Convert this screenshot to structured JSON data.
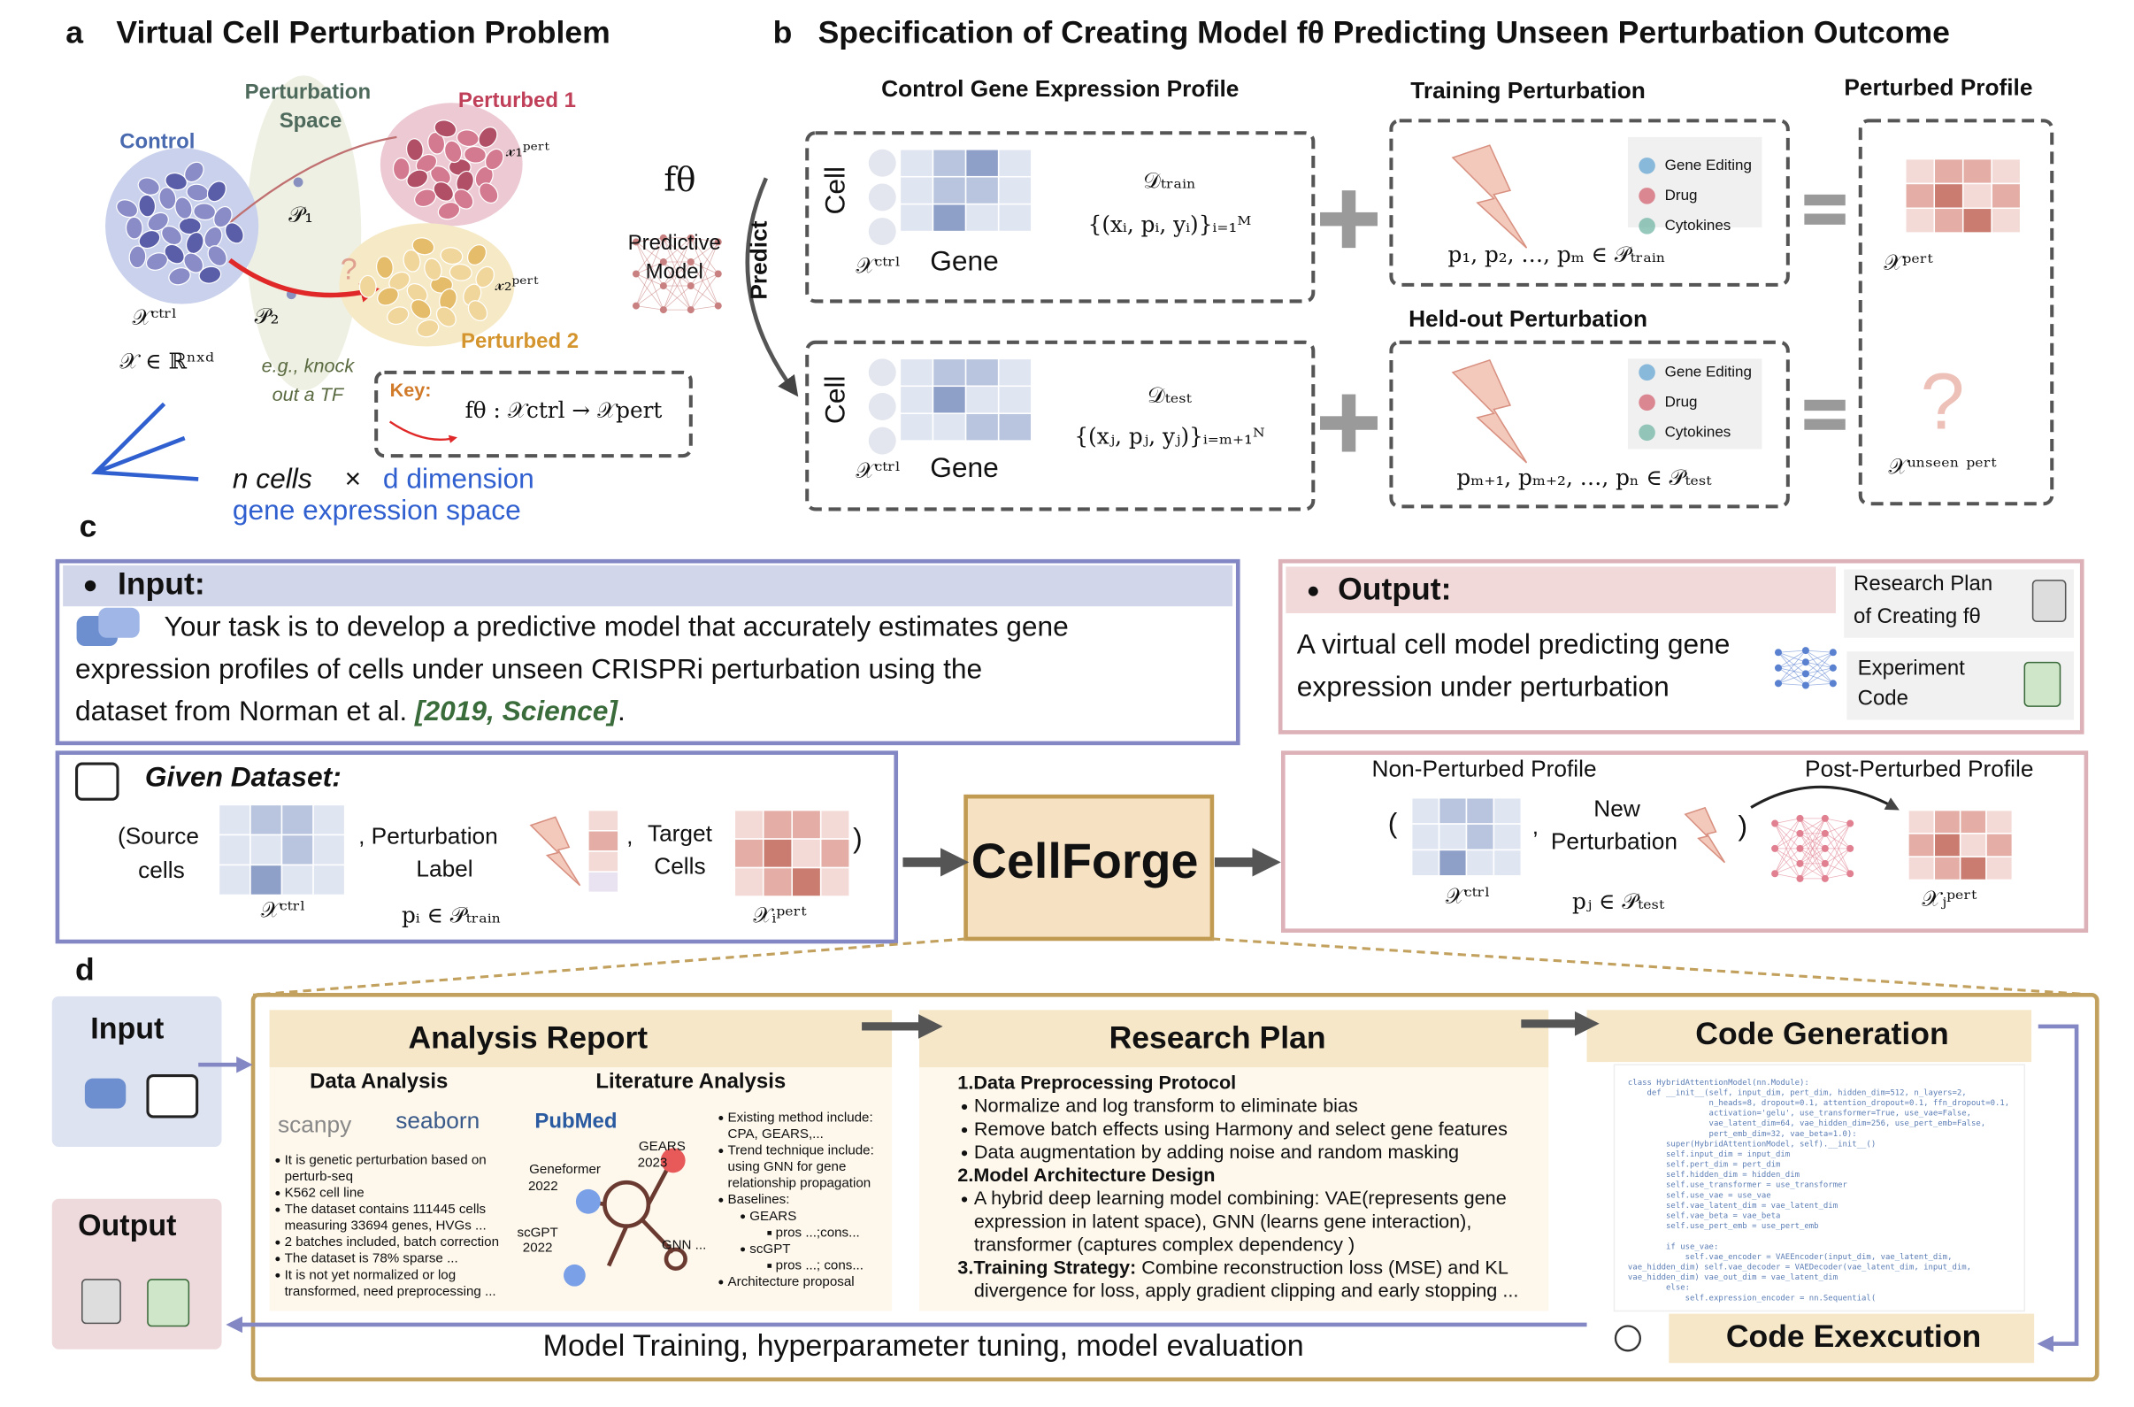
{
  "panel_a": {
    "label": "a",
    "title": "Virtual Cell Perturbation Problem",
    "perturbation_space": [
      "Perturbation",
      "Space"
    ],
    "perturbed_1": "Perturbed 1",
    "control": "Control",
    "x1_pert": "𝓍₁ᵖᵉʳᵗ",
    "p1": "𝒫₁",
    "p2": "𝒫₂",
    "question": "?",
    "x_ctrl": "𝒳ᶜᵗʳˡ",
    "x_space": "𝒳 ∈ ℝⁿˣᵈ",
    "x2_pert": "𝓍₂ᵖᵉʳᵗ",
    "perturbed_2": "Perturbed 2",
    "example": [
      "e.g., knock",
      "out a TF"
    ],
    "key_label": "Key:",
    "key_formula": "fθ : 𝒳ctrl → 𝒳pert",
    "f_theta": "fθ",
    "model": [
      "Predictive",
      "Model"
    ],
    "predict": "Predict",
    "caption": [
      "n cells",
      "×",
      "d dimension",
      "gene expression space"
    ]
  },
  "panel_b": {
    "label": "b",
    "title": "Specification of Creating Model fθ Predicting Unseen Perturbation Outcome",
    "control_profile": "Control Gene Expression Profile",
    "training": "Training Perturbation",
    "perturbed": "Perturbed Profile",
    "heldout": "Held-out Perturbation",
    "train_row": {
      "cell": "Cell",
      "x": "𝒳ᶜᵗʳˡ",
      "gene": "Gene",
      "d": "𝒟ₜᵣₐᵢₙ",
      "set": "{(xᵢ, pᵢ, yᵢ)}ᵢ₌₁ᴹ",
      "icons": [
        "Gene Editing",
        "Drug",
        "Cytokines"
      ],
      "perts": "p₁, p₂, …, pₘ ∈ 𝒫ₜᵣₐᵢₙ",
      "out": "𝒳ᵖᵉʳᵗ"
    },
    "test_row": {
      "cell": "Cell",
      "x": "𝒳ᶜᵗʳˡ",
      "gene": "Gene",
      "d": "𝒟ₜₑₛₜ",
      "set": "{(xⱼ, pⱼ, yⱼ)}ᵢ₌ₘ₊₁ᴺ",
      "icons": [
        "Gene Editing",
        "Drug",
        "Cytokines"
      ],
      "perts": "pₘ₊₁, pₘ₊₂, …, pₙ ∈ 𝒫ₜₑₛₜ",
      "question": "?",
      "out": "𝒳ᵘⁿˢᵉᵉⁿ ᵖᵉʳᵗ"
    }
  },
  "panel_c": {
    "label": "c",
    "input": {
      "heading": "Input:",
      "lines": [
        "Your task is to develop a predictive model that accurately estimates gene",
        "expression profiles of cells under unseen CRISPRi perturbation using the",
        "dataset from Norman et al. "
      ],
      "citation": "[2019, Science]",
      "end": "."
    },
    "output": {
      "heading": "Output:",
      "lines": [
        "A virtual cell model predicting gene",
        "expression under perturbation"
      ],
      "research_plan": [
        "Research Plan",
        "of Creating fθ"
      ],
      "code": [
        "Experiment",
        "Code"
      ]
    },
    "given": {
      "heading": "Given Dataset:",
      "source": [
        "(Source",
        "cells"
      ],
      "x": "𝒳ᶜᵗʳˡ",
      "label": [
        ", Perturbation",
        "Label"
      ],
      "p": "pᵢ ∈ 𝒫ₜᵣₐᵢₙ",
      "comma": ",",
      "target": [
        "Target",
        "Cells"
      ],
      "xi": "𝒳ᵢᵖᵉʳᵗ",
      "close": ")"
    },
    "cellforge": "CellForge",
    "result": {
      "non_perturbed": "Non-Perturbed Profile",
      "post_perturbed": "Post-Perturbed Profile",
      "open": "(",
      "x": "𝒳ᶜᵗʳˡ",
      "comma": ",",
      "new": [
        "New",
        "Perturbation"
      ],
      "p": "pⱼ ∈ 𝒫ₜₑₛₜ",
      "close": ")",
      "xj": "𝒳ⱼᵖᵉʳᵗ"
    }
  },
  "panel_d": {
    "label": "d",
    "input": "Input",
    "output": "Output",
    "analysis": {
      "title": "Analysis Report",
      "data_title": "Data Analysis",
      "scanpy": "scanpy",
      "seaborn": "seaborn",
      "data_bullets": [
        [
          "It is genetic perturbation based on",
          "perturb-seq"
        ],
        [
          "K562 cell line"
        ],
        [
          "The dataset contains 111445 cells",
          "measuring  33694 genes, HVGs ..."
        ],
        [
          "2 batches included, batch correction"
        ],
        [
          "The dataset is 78% sparse ..."
        ],
        [
          "It is not yet normalized or log",
          "transformed, need preprocessing ..."
        ]
      ],
      "lit_title": "Literature Analysis",
      "pubmed": "PubMed",
      "gears": [
        "GEARS",
        "2023"
      ],
      "geneformer": [
        "Geneformer",
        "2022"
      ],
      "scgpt": [
        "scGPT",
        "2022"
      ],
      "gnn": "GNN ...",
      "lit_bullets": [
        [
          "Existing method include:",
          "CPA, GEARS,..."
        ],
        [
          "Trend technique include:",
          "using GNN for gene",
          "relationship propagation"
        ],
        [
          "Baselines:"
        ]
      ],
      "baselines": [
        {
          "name": "GEARS",
          "note": "pros ...;cons..."
        },
        {
          "name": "scGPT",
          "note": "pros ...; cons..."
        }
      ],
      "last": "Architecture proposal"
    },
    "research_plan": {
      "title": "Research Plan",
      "h1": "1.Data Preprocessing Protocol",
      "items1": [
        "Normalize and log transform to eliminate bias",
        "Remove batch effects using Harmony and select gene features",
        "Data augmentation by adding noise and random masking"
      ],
      "h2": "2.Model Architecture Design",
      "items2": [
        "A hybrid deep learning model combining: VAE(represents gene",
        "expression in latent space), GNN (learns gene interaction),",
        "transformer (captures complex dependency )"
      ],
      "h3": "3.Training Strategy:",
      "h3_rest": " Combine reconstruction loss (MSE) and KL",
      "h3_line2": "divergence for loss, apply gradient clipping and early stopping ..."
    },
    "code_generation": {
      "title": "Code Generation",
      "code": [
        "class HybridAttentionModel(nn.Module):",
        "    def __init__(self, input_dim, pert_dim, hidden_dim=512, n_layers=2,",
        "                 n_heads=8, dropout=0.1, attention_dropout=0.1, ffn_dropout=0.1,",
        "                 activation='gelu', use_transformer=True, use_vae=False,",
        "                 vae_latent_dim=64, vae_hidden_dim=256, use_pert_emb=False,",
        "                 pert_emb_dim=32, vae_beta=1.0):",
        "        super(HybridAttentionModel, self).__init__()",
        "        self.input_dim = input_dim",
        "        self.pert_dim = pert_dim",
        "        self.hidden_dim = hidden_dim",
        "        self.use_transformer = use_transformer",
        "        self.use_vae = use_vae",
        "        self.vae_latent_dim = vae_latent_dim",
        "        self.vae_beta = vae_beta",
        "        self.use_pert_emb = use_pert_emb",
        "",
        "        if use_vae:",
        "            self.vae_encoder = VAEEncoder(input_dim, vae_latent_dim,",
        "vae_hidden_dim) self.vae_decoder = VAEDecoder(vae_latent_dim, input_dim,",
        "vae_hidden_dim) vae_out_dim = vae_latent_dim",
        "        else:",
        "            self.expression_encoder = nn.Sequential("
      ]
    },
    "code_execution": "Code Exexcution",
    "loop": "Model Training, hyperparameter tuning, model evaluation"
  }
}
